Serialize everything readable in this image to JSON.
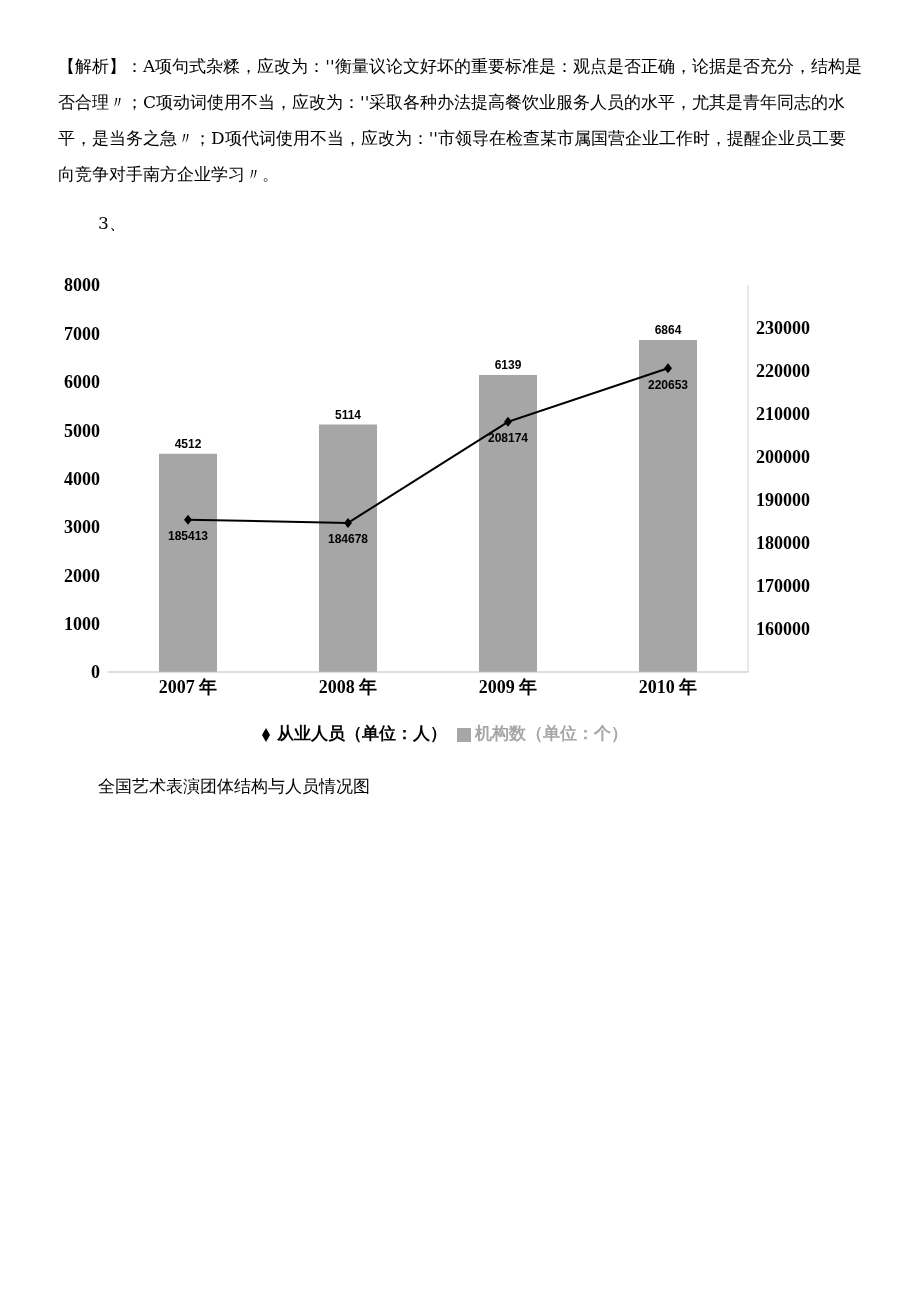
{
  "chart_data": {
    "type": "bar",
    "annotations": [
      "【解析】：A项句式杂糅，应改为：''衡量议论文好坏的重要标准是：观点是否正确，论据是否充分，结构是否合理〃；C项动词使用不当，应改为：''采取各种办法提高餐饮业服务人员的水平，尤其是青年同志的水平，是当务之急〃；D项代词使用不当，应改为：''市领导在检查某市属国营企业工作时，提醒企业员工要向竞争对手南方企业学习〃。",
      "3、",
      "全国艺术表演团体结构与人员情况图"
    ],
    "categories": [
      "2007 年",
      "2008 年",
      "2009 年",
      "2010 年"
    ],
    "series": [
      {
        "name": "机构数（单位：个）",
        "color": "#a6a6a6",
        "values": [
          4512,
          5114,
          6139,
          6864
        ]
      },
      {
        "name": "从业人员（单位：人）",
        "type": "line",
        "axis": "y2",
        "color": "#000000",
        "marker": "diamond",
        "values": [
          185413,
          184678,
          208174,
          220653
        ]
      }
    ],
    "ylim": [
      0,
      8000
    ],
    "yticks": [
      0,
      1000,
      2000,
      3000,
      4000,
      5000,
      6000,
      7000,
      8000
    ],
    "y2lim": [
      150000,
      240000
    ],
    "y2ticks": [
      160000,
      170000,
      180000,
      190000,
      200000,
      210000,
      220000,
      230000
    ],
    "data_labels": true,
    "grid": false,
    "legend": "bottom"
  }
}
